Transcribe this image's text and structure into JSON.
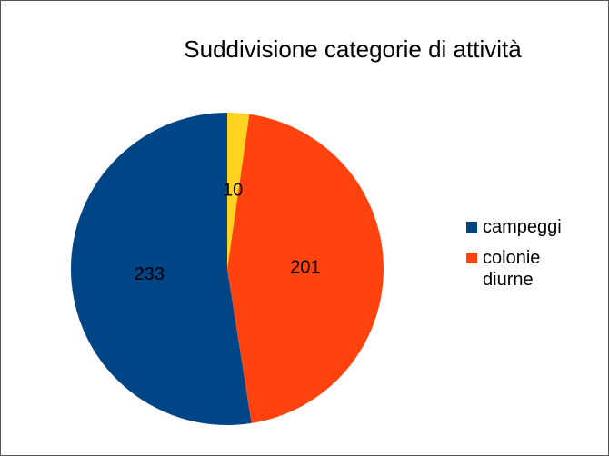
{
  "chart_data": {
    "type": "pie",
    "title": "Suddivisione categorie di attività",
    "categories": [
      "campeggi",
      "colonie diurne",
      null
    ],
    "values": [
      233,
      201,
      10
    ],
    "colors": [
      "#004586",
      "#ff420e",
      "#ffd320"
    ]
  }
}
